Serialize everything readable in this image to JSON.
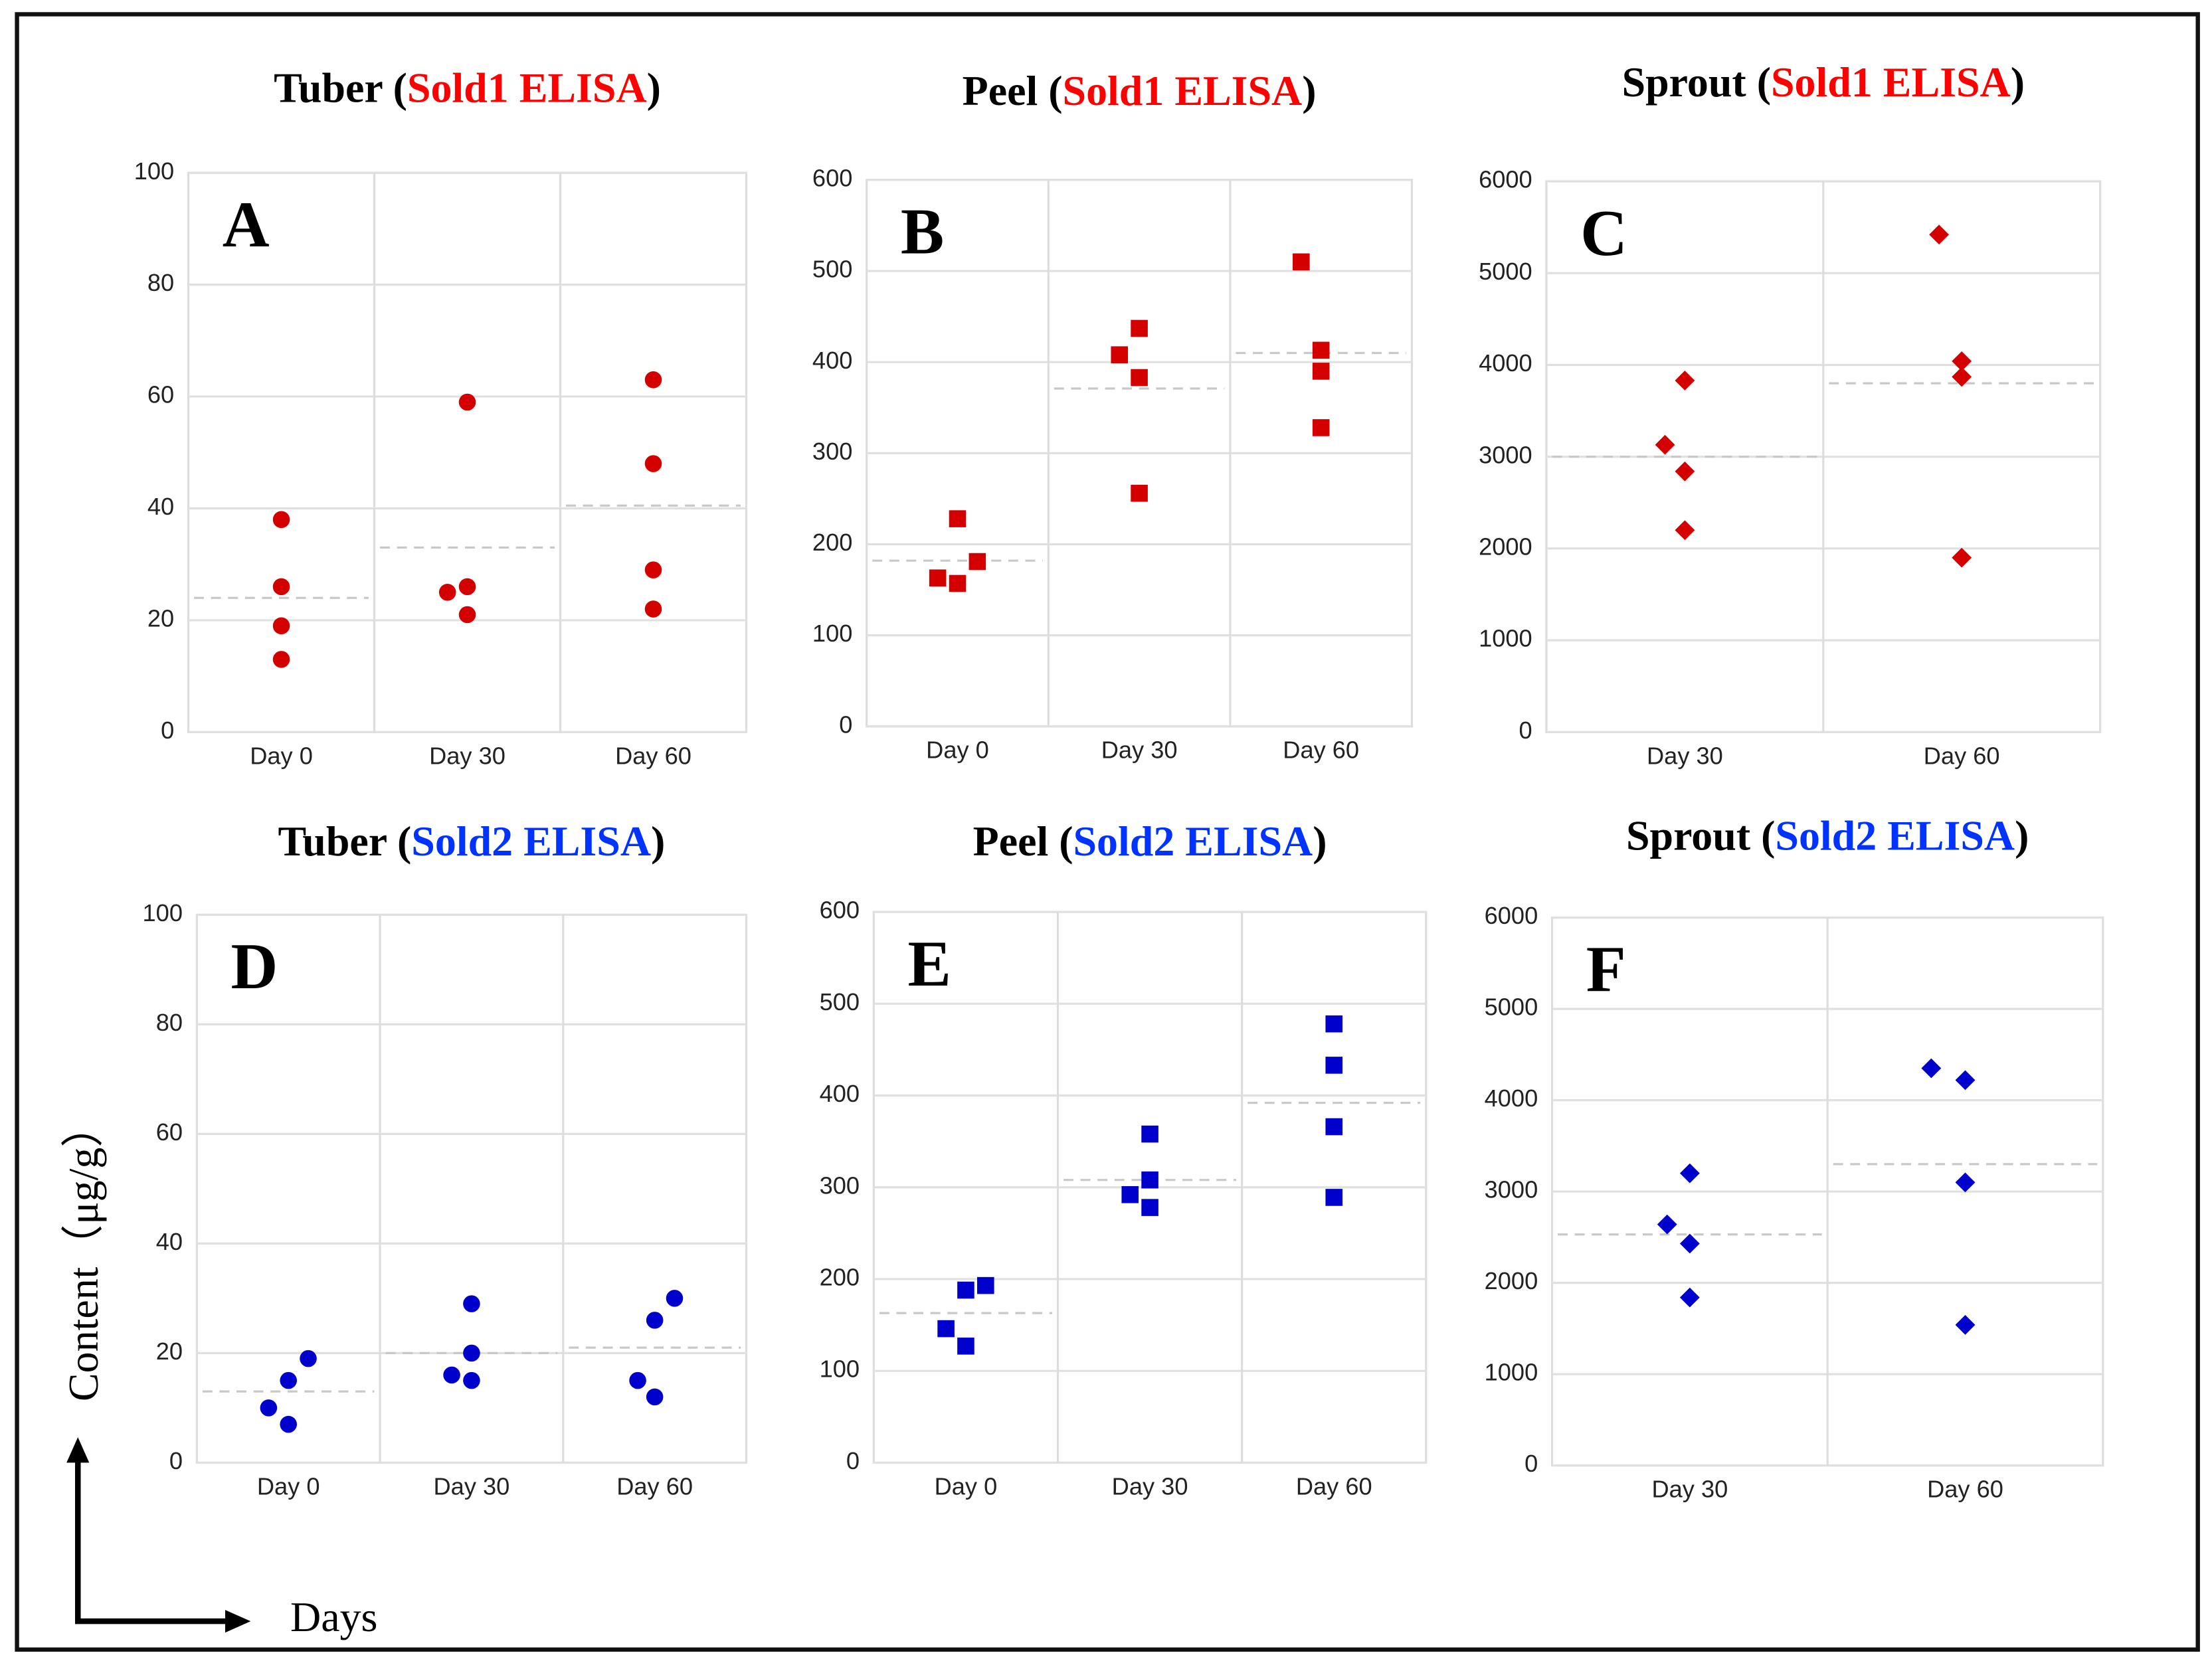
{
  "y_label": "Content（μg/g）",
  "x_label": "Days",
  "chart_data": [
    {
      "type": "scatter",
      "title_parts": [
        "Tuber (",
        "Sold1 ELISA",
        ")"
      ],
      "panel": "A",
      "marker": "circle",
      "color": "#d40000",
      "title_color": "#ff0000",
      "categories": [
        "Day 0",
        "Day 30",
        "Day 60"
      ],
      "values": [
        [
          38,
          26,
          19,
          13
        ],
        [
          59,
          25,
          26,
          21
        ],
        [
          63,
          48,
          29,
          22
        ]
      ],
      "means": [
        24,
        33,
        40.5
      ],
      "ylim": [
        0,
        100
      ],
      "yticks": [
        0,
        20,
        40,
        60,
        80,
        100
      ],
      "grid": true
    },
    {
      "type": "scatter",
      "title_parts": [
        "Peel (",
        "Sold1 ELISA",
        ")"
      ],
      "panel": "B",
      "marker": "square",
      "color": "#d40000",
      "title_color": "#ff0000",
      "categories": [
        "Day 0",
        "Day 30",
        "Day 60"
      ],
      "values": [
        [
          228,
          163,
          157,
          181
        ],
        [
          408,
          437,
          383,
          256
        ],
        [
          510,
          413,
          390,
          328
        ]
      ],
      "means": [
        182,
        371,
        410
      ],
      "ylim": [
        0,
        600
      ],
      "yticks": [
        0,
        100,
        200,
        300,
        400,
        500,
        600
      ],
      "grid": true
    },
    {
      "type": "scatter",
      "title_parts": [
        "Sprout (",
        "Sold1 ELISA",
        ")"
      ],
      "panel": "C",
      "marker": "diamond",
      "color": "#d40000",
      "title_color": "#ff0000",
      "categories": [
        "Day 30",
        "Day 60"
      ],
      "values": [
        [
          3830,
          3130,
          2840,
          2200
        ],
        [
          5420,
          4040,
          3870,
          1900
        ]
      ],
      "means": [
        3000,
        3800
      ],
      "ylim": [
        0,
        6000
      ],
      "yticks": [
        0,
        1000,
        2000,
        3000,
        4000,
        5000,
        6000
      ],
      "grid": true
    },
    {
      "type": "scatter",
      "title_parts": [
        "Tuber (",
        "Sold2 ELISA",
        ")"
      ],
      "panel": "D",
      "marker": "circle",
      "color": "#0000cc",
      "title_color": "#0033ff",
      "categories": [
        "Day 0",
        "Day 30",
        "Day 60"
      ],
      "values": [
        [
          19,
          15,
          10,
          7
        ],
        [
          29,
          20,
          16,
          15
        ],
        [
          30,
          26,
          15,
          12
        ]
      ],
      "means": [
        13,
        20,
        21
      ],
      "ylim": [
        0,
        100
      ],
      "yticks": [
        0,
        20,
        40,
        60,
        80,
        100
      ],
      "grid": true
    },
    {
      "type": "scatter",
      "title_parts": [
        "Peel (",
        "Sold2 ELISA",
        ")"
      ],
      "panel": "E",
      "marker": "square",
      "color": "#0000cc",
      "title_color": "#0033ff",
      "categories": [
        "Day 0",
        "Day 30",
        "Day 60"
      ],
      "values": [
        [
          193,
          188,
          146,
          127
        ],
        [
          358,
          308,
          292,
          278
        ],
        [
          478,
          433,
          366,
          289
        ]
      ],
      "means": [
        163,
        308,
        392
      ],
      "ylim": [
        0,
        600
      ],
      "yticks": [
        0,
        100,
        200,
        300,
        400,
        500,
        600
      ],
      "grid": true
    },
    {
      "type": "scatter",
      "title_parts": [
        "Sprout (",
        "Sold2 ELISA",
        ")"
      ],
      "panel": "F",
      "marker": "diamond",
      "color": "#0000cc",
      "title_color": "#0033ff",
      "categories": [
        "Day 30",
        "Day 60"
      ],
      "values": [
        [
          3200,
          2640,
          2430,
          1840
        ],
        [
          4350,
          4220,
          3100,
          1540
        ]
      ],
      "means": [
        2530,
        3300
      ],
      "ylim": [
        0,
        6000
      ],
      "yticks": [
        0,
        1000,
        2000,
        3000,
        4000,
        5000,
        6000
      ],
      "grid": true
    }
  ]
}
